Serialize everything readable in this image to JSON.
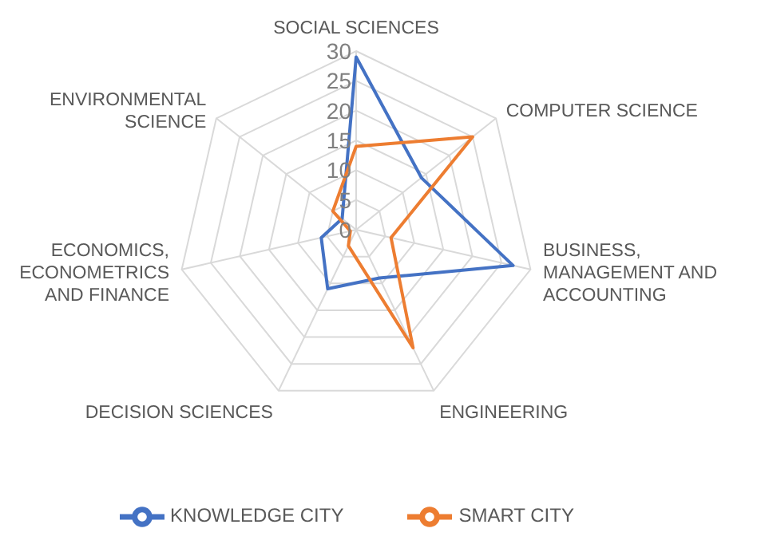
{
  "chart_data": {
    "type": "radar",
    "categories": [
      "SOCIAL SCIENCES",
      "COMPUTER SCIENCE",
      "BUSINESS, MANAGEMENT AND ACCOUNTING",
      "ENGINEERING",
      "DECISION SCIENCES",
      "ECONOMICS, ECONOMETRICS AND FINANCE",
      "ENVIRONMENTAL SCIENCE"
    ],
    "series": [
      {
        "name": "KNOWLEDGE CITY",
        "color": "#4472c4",
        "values": [
          29,
          14,
          27,
          9,
          11,
          6,
          3
        ]
      },
      {
        "name": "SMART CITY",
        "color": "#ed7d31",
        "values": [
          14,
          25,
          6,
          22,
          3,
          1,
          5
        ]
      }
    ],
    "ylim": [
      0,
      30
    ],
    "yticks": [
      0,
      5,
      10,
      15,
      20,
      25,
      30
    ],
    "grid": true,
    "legend": "bottom",
    "marker": "none"
  }
}
